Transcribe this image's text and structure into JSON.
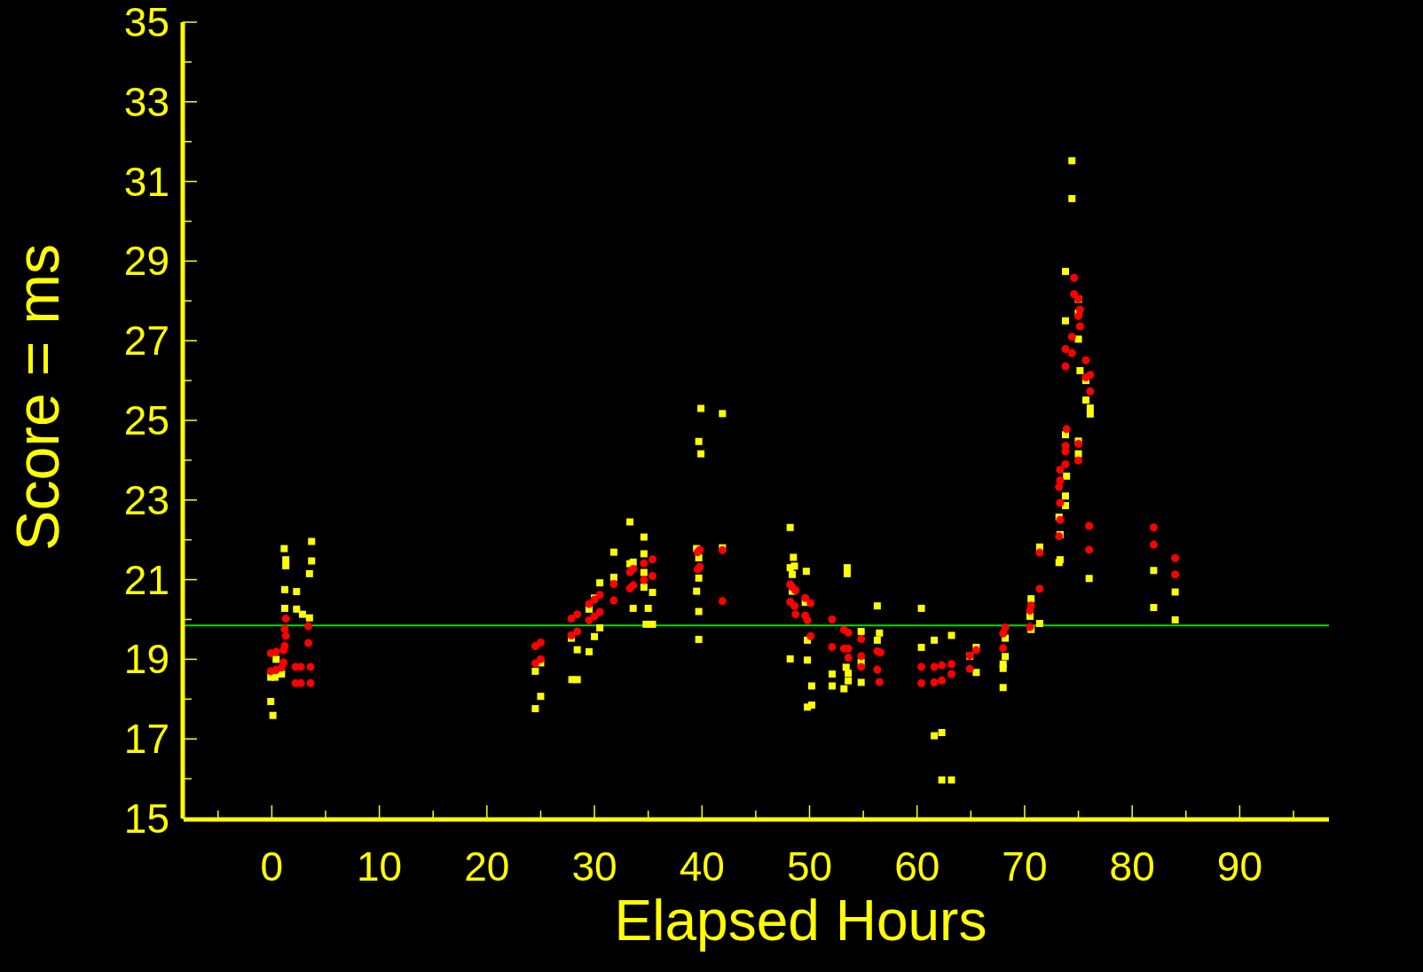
{
  "chart_data": {
    "type": "scatter",
    "xlabel": "Elapsed Hours",
    "ylabel": "Score = ms",
    "xlim": [
      -8.2,
      98.3
    ],
    "ylim": [
      15,
      35
    ],
    "xticks": [
      {
        "value": -5,
        "label": null
      },
      0,
      {
        "value": 5,
        "label": null
      },
      10,
      {
        "value": 15,
        "label": null
      },
      20,
      {
        "value": 25,
        "label": null
      },
      30,
      {
        "value": 35,
        "label": null
      },
      40,
      {
        "value": 45,
        "label": null
      },
      50,
      {
        "value": 55,
        "label": null
      },
      60,
      {
        "value": 65,
        "label": null
      },
      70,
      {
        "value": 75,
        "label": null
      },
      80,
      {
        "value": 85,
        "label": null
      },
      90,
      {
        "value": 95,
        "label": null
      }
    ],
    "yticks": [
      15,
      {
        "value": 16,
        "label": null
      },
      17,
      {
        "value": 18,
        "label": null
      },
      19,
      {
        "value": 20,
        "label": null
      },
      21,
      {
        "value": 22,
        "label": null
      },
      23,
      {
        "value": 24,
        "label": null
      },
      25,
      {
        "value": 26,
        "label": null
      },
      27,
      {
        "value": 28,
        "label": null
      },
      29,
      {
        "value": 30,
        "label": null
      },
      31,
      {
        "value": 32,
        "label": null
      },
      33,
      {
        "value": 34,
        "label": null
      },
      35
    ],
    "grid": false,
    "legend": false,
    "ref_lines": [
      {
        "axis": "y",
        "value": 19.85,
        "color": "#00e000",
        "line_style": "solid"
      }
    ],
    "series": [
      {
        "color": "#ffff00",
        "marker": "square",
        "x": [
          -0.1,
          0.1,
          -0.1,
          0.3,
          0.9,
          0.4,
          1.15,
          1.3,
          1.3,
          1.2,
          1.2,
          2.3,
          2.3,
          2.85,
          3.5,
          3.7,
          3.7,
          3.5,
          24.5,
          25.0,
          25.0,
          24.5,
          27.85,
          28.4,
          27.9,
          28.4,
          29.5,
          30.0,
          30.5,
          29.5,
          30.0,
          30.5,
          31.8,
          31.8,
          33.3,
          33.6,
          33.3,
          33.6,
          34.6,
          34.6,
          34.6,
          34.6,
          35.4,
          35.0,
          34.8,
          35.4,
          39.9,
          39.7,
          39.9,
          39.5,
          39.7,
          39.7,
          39.5,
          39.7,
          39.7,
          41.9,
          41.9,
          48.2,
          48.5,
          48.2,
          48.6,
          48.4,
          49.7,
          48.4,
          48.2,
          49.6,
          49.8,
          49.8,
          50.2,
          49.8,
          50.2,
          52.1,
          52.1,
          53.5,
          53.5,
          53.2,
          53.4,
          53.6,
          53.6,
          54.8,
          54.8,
          54.8,
          56.3,
          56.5,
          56.3,
          60.4,
          60.4,
          61.6,
          61.6,
          62.3,
          62.3,
          63.2,
          63.2,
          65.5,
          64.9,
          65.5,
          68.2,
          68.2,
          68.0,
          68.0,
          68.0,
          70.6,
          70.5,
          70.6,
          71.4,
          71.4,
          74.4,
          74.4,
          73.8,
          75.0,
          75.0,
          73.8,
          75.0,
          75.15,
          75.7,
          75.7,
          76.1,
          76.1,
          73.8,
          75.0,
          75.0,
          73.9,
          73.8,
          73.8,
          73.2,
          73.3,
          73.3,
          73.2,
          76.0,
          82.0,
          82.0,
          84.0,
          84.0
        ],
        "values": [
          17.94,
          17.59,
          18.55,
          18.55,
          18.63,
          19.0,
          21.78,
          21.5,
          21.35,
          20.75,
          20.28,
          20.7,
          20.26,
          20.13,
          20.04,
          21.96,
          21.47,
          21.15,
          18.7,
          18.91,
          18.07,
          17.76,
          19.53,
          19.24,
          18.49,
          18.49,
          20.26,
          20.54,
          20.92,
          19.19,
          19.57,
          19.79,
          21.69,
          21.06,
          22.45,
          21.44,
          21.4,
          20.28,
          22.07,
          21.65,
          21.18,
          20.81,
          20.68,
          20.28,
          19.88,
          19.88,
          25.3,
          24.47,
          24.16,
          21.78,
          21.55,
          21.04,
          20.71,
          20.2,
          19.5,
          25.17,
          21.8,
          22.31,
          21.56,
          21.3,
          21.34,
          21.13,
          21.21,
          20.71,
          19.01,
          20.43,
          19.48,
          18.98,
          18.33,
          17.8,
          17.85,
          18.63,
          18.33,
          21.3,
          21.15,
          18.26,
          18.8,
          18.46,
          18.65,
          19.7,
          18.92,
          18.42,
          20.34,
          19.66,
          19.48,
          20.28,
          19.3,
          19.48,
          17.08,
          17.16,
          15.97,
          15.97,
          19.6,
          19.3,
          19.08,
          18.67,
          19.53,
          19.07,
          18.88,
          18.77,
          18.29,
          20.52,
          20.08,
          19.75,
          19.9,
          21.82,
          31.52,
          30.57,
          28.74,
          28.04,
          27.7,
          27.5,
          27.04,
          26.25,
          26.0,
          25.51,
          25.31,
          25.16,
          24.64,
          24.48,
          24.16,
          23.6,
          23.1,
          22.86,
          22.57,
          22.13,
          21.5,
          21.43,
          21.03,
          21.23,
          20.3,
          20.69,
          19.99
        ]
      },
      {
        "color": "#ff0000",
        "marker": "circle",
        "x": [
          -0.1,
          0.4,
          1.1,
          -0.1,
          0.4,
          0.9,
          1.1,
          1.2,
          1.3,
          1.2,
          1.3,
          2.2,
          2.7,
          3.6,
          2.2,
          2.7,
          3.6,
          3.4,
          3.4,
          24.5,
          25.0,
          24.5,
          25.0,
          27.85,
          28.4,
          27.85,
          28.4,
          29.5,
          30.0,
          30.5,
          29.5,
          30.0,
          30.5,
          31.8,
          31.8,
          33.3,
          33.6,
          33.3,
          33.6,
          34.6,
          35.4,
          34.6,
          35.4,
          39.6,
          39.8,
          39.6,
          39.8,
          41.9,
          41.9,
          48.2,
          48.4,
          48.7,
          48.2,
          48.6,
          48.7,
          49.6,
          50.1,
          49.6,
          49.8,
          50.1,
          52.1,
          52.1,
          53.2,
          53.6,
          53.2,
          53.6,
          53.6,
          54.8,
          54.8,
          54.8,
          56.3,
          56.6,
          56.3,
          56.5,
          60.4,
          60.4,
          61.6,
          62.3,
          61.6,
          62.3,
          63.2,
          63.2,
          65.5,
          64.9,
          64.9,
          68.2,
          68.0,
          68.0,
          70.6,
          70.5,
          70.5,
          71.4,
          71.4,
          74.6,
          74.6,
          75.0,
          75.15,
          75.0,
          75.15,
          74.4,
          73.8,
          74.4,
          73.8,
          75.7,
          75.7,
          76.1,
          76.1,
          73.9,
          73.8,
          73.8,
          75.0,
          75.0,
          73.8,
          73.3,
          73.3,
          73.2,
          73.3,
          73.3,
          73.2,
          76.0,
          76.0,
          82.0,
          82.0,
          84.0,
          84.0
        ],
        "values": [
          19.15,
          19.19,
          19.23,
          18.7,
          18.74,
          18.79,
          18.92,
          19.34,
          19.59,
          19.76,
          20.02,
          18.81,
          18.81,
          18.81,
          18.4,
          18.4,
          18.4,
          19.83,
          19.41,
          19.33,
          19.42,
          18.9,
          19.0,
          20.02,
          20.13,
          19.6,
          19.7,
          20.39,
          20.5,
          20.62,
          19.98,
          20.08,
          20.19,
          20.89,
          20.48,
          21.19,
          21.27,
          20.78,
          20.86,
          21.41,
          21.51,
          20.99,
          21.09,
          21.69,
          21.75,
          21.26,
          21.32,
          21.74,
          20.46,
          20.88,
          20.81,
          20.73,
          20.44,
          20.34,
          20.13,
          20.54,
          20.41,
          20.1,
          19.98,
          19.58,
          20.0,
          19.31,
          19.74,
          19.67,
          19.27,
          19.27,
          19.04,
          19.51,
          19.08,
          18.81,
          19.2,
          19.17,
          18.74,
          18.43,
          18.81,
          18.4,
          18.81,
          18.85,
          18.42,
          18.47,
          18.88,
          18.63,
          19.23,
          19.09,
          18.76,
          19.8,
          19.65,
          19.28,
          20.35,
          20.22,
          19.81,
          21.68,
          20.77,
          28.58,
          28.17,
          28.05,
          27.78,
          27.62,
          27.36,
          27.1,
          26.79,
          26.69,
          26.36,
          26.51,
          26.08,
          26.14,
          25.73,
          24.78,
          24.36,
          24.22,
          24.41,
          23.99,
          23.9,
          23.76,
          23.49,
          23.33,
          22.93,
          22.5,
          22.09,
          22.35,
          21.75,
          22.31,
          21.88,
          21.54,
          21.13
        ]
      }
    ]
  }
}
